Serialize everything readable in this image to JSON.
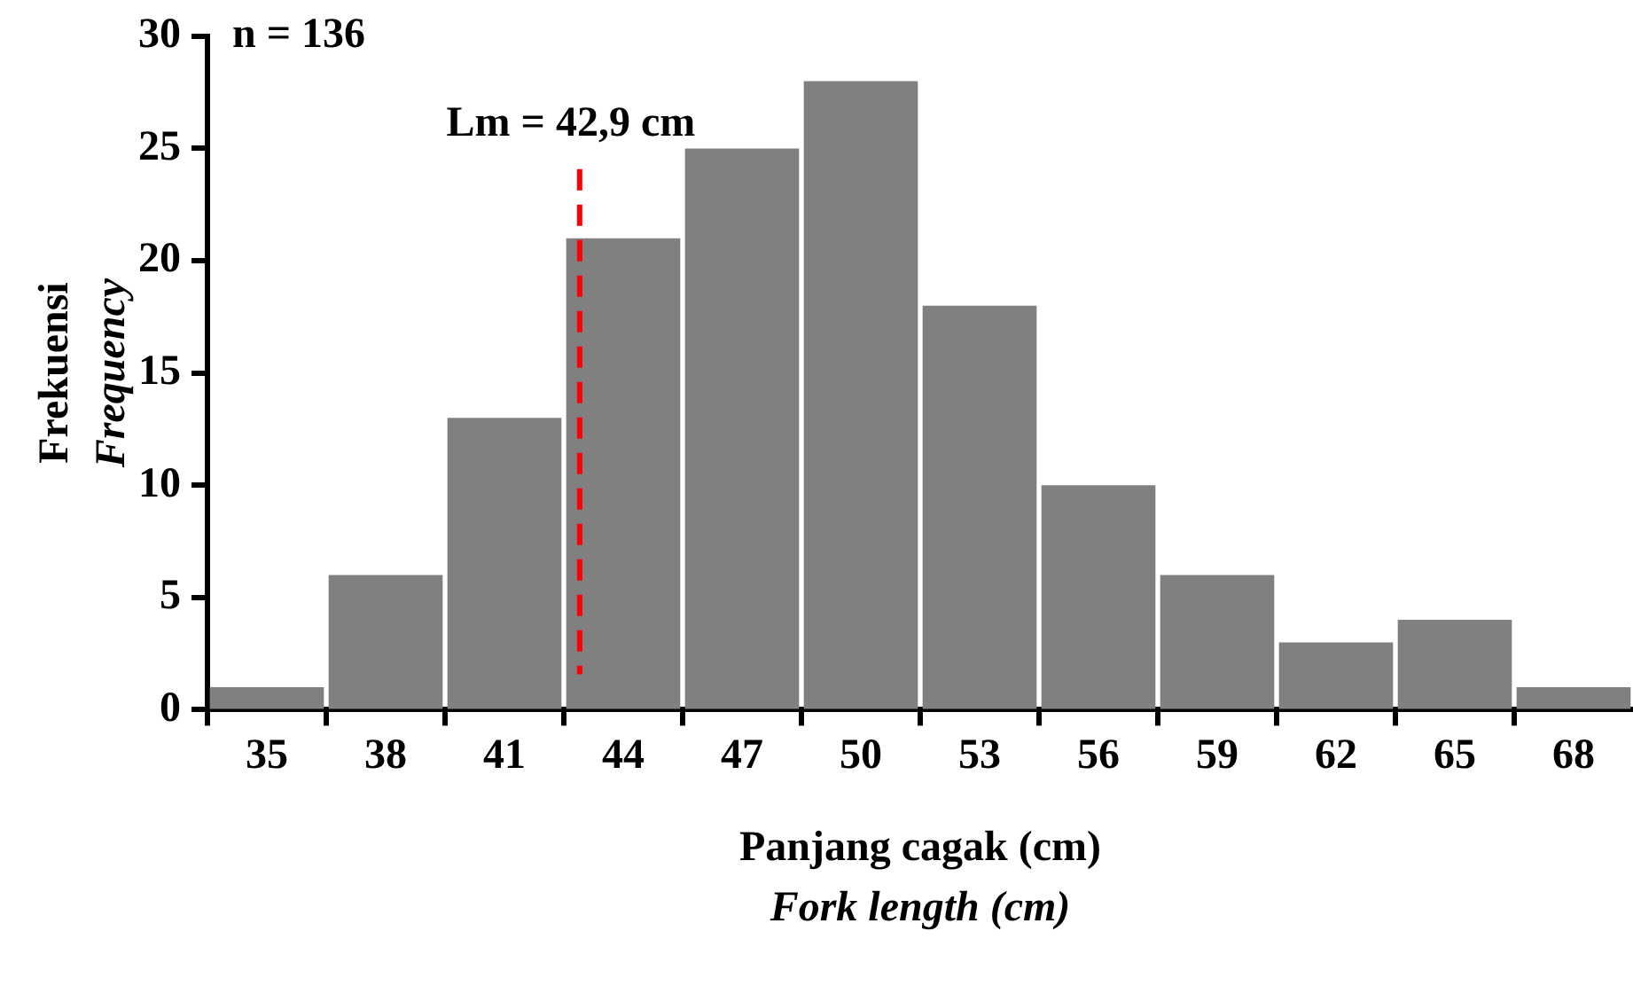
{
  "chart_data": {
    "type": "histogram",
    "bins": [
      33.5,
      36.5,
      39.5,
      42.5,
      45.5,
      48.5,
      51.5,
      54.5,
      57.5,
      60.5,
      63.5,
      66.5,
      69.5
    ],
    "values": [
      1,
      6,
      13,
      21,
      25,
      28,
      18,
      10,
      6,
      3,
      4,
      1
    ],
    "color": "#808080",
    "xlabel": "Panjang cagak (cm)\nFork length (cm)",
    "ylabel": "Frekuensi\nFrequency",
    "xlim": [
      33.5,
      69.5
    ],
    "xticks": [
      {
        "value": 33.5,
        "label": null
      },
      35,
      {
        "value": 36.5,
        "label": null
      },
      38,
      {
        "value": 39.5,
        "label": null
      },
      41,
      {
        "value": 42.5,
        "label": null
      },
      44,
      {
        "value": 45.5,
        "label": null
      },
      47,
      {
        "value": 48.5,
        "label": null
      },
      50,
      {
        "value": 51.5,
        "label": null
      },
      53,
      {
        "value": 54.5,
        "label": null
      },
      56,
      {
        "value": 57.5,
        "label": null
      },
      59,
      {
        "value": 60.5,
        "label": null
      },
      62,
      {
        "value": 63.5,
        "label": null
      },
      65,
      {
        "value": 66.5,
        "label": null
      },
      68
    ],
    "ylim": [
      0,
      30
    ],
    "yticks": [
      0,
      5,
      10,
      15,
      20,
      25,
      30
    ],
    "ref_lines": [
      {
        "axis": "x",
        "value": 42.9,
        "label": "Lm = 42,9 cm",
        "color": "#ff0000",
        "line_style": "dashed"
      }
    ],
    "annotations": [
      "n = 136"
    ],
    "grid": false,
    "legend": false
  }
}
